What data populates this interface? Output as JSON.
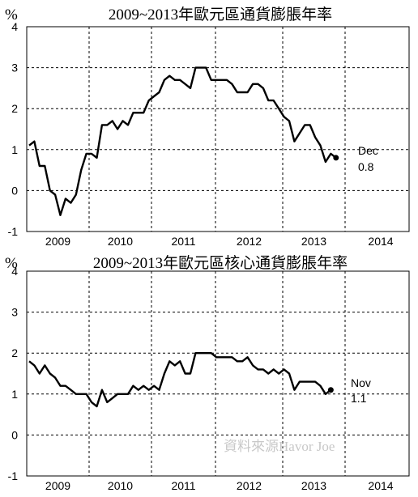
{
  "chart_data": [
    {
      "type": "line",
      "title": "2009~2013年歐元區通貨膨脹年率",
      "unit_label": "%",
      "ylim": [
        -1,
        4
      ],
      "yticks": [
        "-1",
        "0",
        "1",
        "2",
        "3",
        "4"
      ],
      "x_categories": [
        "2009",
        "2010",
        "2011",
        "2012",
        "2013",
        "2014"
      ],
      "grid": "dashed",
      "series": [
        {
          "x": [
            "2009-01",
            "2009-02",
            "2009-03",
            "2009-04",
            "2009-05",
            "2009-06",
            "2009-07",
            "2009-08",
            "2009-09",
            "2009-10",
            "2009-11",
            "2009-12",
            "2010-01",
            "2010-02",
            "2010-03",
            "2010-04",
            "2010-05",
            "2010-06",
            "2010-07",
            "2010-08",
            "2010-09",
            "2010-10",
            "2010-11",
            "2010-12",
            "2011-01",
            "2011-02",
            "2011-03",
            "2011-04",
            "2011-05",
            "2011-06",
            "2011-07",
            "2011-08",
            "2011-09",
            "2011-10",
            "2011-11",
            "2011-12",
            "2012-01",
            "2012-02",
            "2012-03",
            "2012-04",
            "2012-05",
            "2012-06",
            "2012-07",
            "2012-08",
            "2012-09",
            "2012-10",
            "2012-11",
            "2012-12",
            "2013-01",
            "2013-02",
            "2013-03",
            "2013-04",
            "2013-05",
            "2013-06",
            "2013-07",
            "2013-08",
            "2013-09",
            "2013-10",
            "2013-11",
            "2013-12"
          ],
          "values": [
            1.1,
            1.2,
            0.6,
            0.6,
            0.0,
            -0.1,
            -0.6,
            -0.2,
            -0.3,
            -0.1,
            0.5,
            0.9,
            0.9,
            0.8,
            1.6,
            1.6,
            1.7,
            1.5,
            1.7,
            1.6,
            1.9,
            1.9,
            1.9,
            2.2,
            2.3,
            2.4,
            2.7,
            2.8,
            2.7,
            2.7,
            2.6,
            2.5,
            3.0,
            3.0,
            3.0,
            2.7,
            2.7,
            2.7,
            2.7,
            2.6,
            2.4,
            2.4,
            2.4,
            2.6,
            2.6,
            2.5,
            2.2,
            2.2,
            2.0,
            1.8,
            1.7,
            1.2,
            1.4,
            1.6,
            1.6,
            1.3,
            1.1,
            0.7,
            0.9,
            0.8
          ]
        }
      ],
      "annotation": {
        "label": "Dec",
        "value": "0.8"
      }
    },
    {
      "type": "line",
      "title": "2009~2013年歐元區核心通貨膨脹年率",
      "unit_label": "%",
      "ylim": [
        -1,
        4
      ],
      "yticks": [
        "-1",
        "0",
        "1",
        "2",
        "3",
        "4"
      ],
      "x_categories": [
        "2009",
        "2010",
        "2011",
        "2012",
        "2013",
        "2014"
      ],
      "grid": "dashed",
      "series": [
        {
          "x": [
            "2009-01",
            "2009-02",
            "2009-03",
            "2009-04",
            "2009-05",
            "2009-06",
            "2009-07",
            "2009-08",
            "2009-09",
            "2009-10",
            "2009-11",
            "2009-12",
            "2010-01",
            "2010-02",
            "2010-03",
            "2010-04",
            "2010-05",
            "2010-06",
            "2010-07",
            "2010-08",
            "2010-09",
            "2010-10",
            "2010-11",
            "2010-12",
            "2011-01",
            "2011-02",
            "2011-03",
            "2011-04",
            "2011-05",
            "2011-06",
            "2011-07",
            "2011-08",
            "2011-09",
            "2011-10",
            "2011-11",
            "2011-12",
            "2012-01",
            "2012-02",
            "2012-03",
            "2012-04",
            "2012-05",
            "2012-06",
            "2012-07",
            "2012-08",
            "2012-09",
            "2012-10",
            "2012-11",
            "2012-12",
            "2013-01",
            "2013-02",
            "2013-03",
            "2013-04",
            "2013-05",
            "2013-06",
            "2013-07",
            "2013-08",
            "2013-09",
            "2013-10",
            "2013-11"
          ],
          "values": [
            1.8,
            1.7,
            1.5,
            1.7,
            1.5,
            1.4,
            1.2,
            1.2,
            1.1,
            1.0,
            1.0,
            1.0,
            0.8,
            0.7,
            1.1,
            0.8,
            0.9,
            1.0,
            1.0,
            1.0,
            1.2,
            1.1,
            1.2,
            1.1,
            1.2,
            1.1,
            1.5,
            1.8,
            1.7,
            1.8,
            1.5,
            1.5,
            2.0,
            2.0,
            2.0,
            2.0,
            1.9,
            1.9,
            1.9,
            1.9,
            1.8,
            1.8,
            1.9,
            1.7,
            1.6,
            1.6,
            1.5,
            1.6,
            1.5,
            1.6,
            1.5,
            1.1,
            1.3,
            1.3,
            1.3,
            1.3,
            1.2,
            1.0,
            1.1
          ]
        }
      ],
      "annotation": {
        "label": "Nov",
        "value": "1.1"
      },
      "watermark": "資料來源Havor   Joe"
    }
  ]
}
